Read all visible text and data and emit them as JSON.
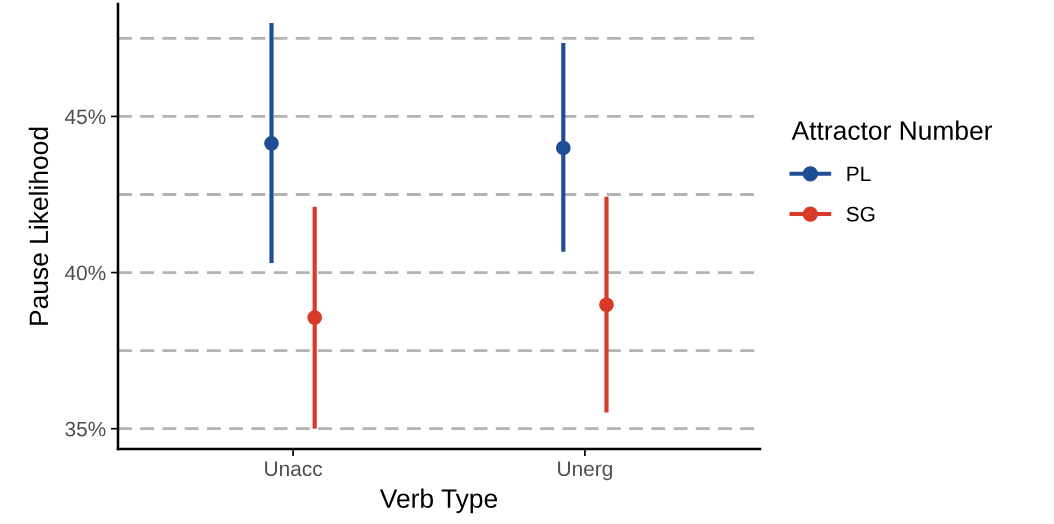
{
  "chart_data": {
    "type": "scatter",
    "xlabel": "Verb Type",
    "ylabel": "Pause Likelihood",
    "legend_title": "Attractor Number",
    "categories": [
      "Unacc",
      "Unerg"
    ],
    "series": [
      {
        "name": "PL",
        "color": "#1f4e96",
        "values": [
          44.14,
          43.99
        ],
        "errors": [
          [
            40.31,
            47.99
          ],
          [
            40.67,
            47.35
          ]
        ]
      },
      {
        "name": "SG",
        "color": "#d83a2a",
        "values": [
          38.56,
          38.97
        ],
        "errors": [
          [
            35.0,
            42.11
          ],
          [
            35.52,
            42.43
          ]
        ]
      }
    ],
    "ylim": [
      34.35,
      48.6
    ],
    "yticks": [
      {
        "value": 35,
        "label": "35%"
      },
      {
        "value": 37.5,
        "label": null
      },
      {
        "value": 40,
        "label": "40%"
      },
      {
        "value": 42.5,
        "label": null
      },
      {
        "value": 45,
        "label": "45%"
      },
      {
        "value": 47.5,
        "label": null
      }
    ],
    "grid": "y",
    "legend": "right",
    "marker": "circle"
  }
}
